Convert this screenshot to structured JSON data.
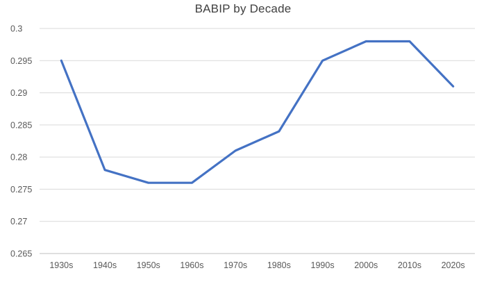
{
  "chart_data": {
    "type": "line",
    "title": "BABIP by Decade",
    "categories": [
      "1930s",
      "1940s",
      "1950s",
      "1960s",
      "1970s",
      "1980s",
      "1990s",
      "2000s",
      "2010s",
      "2020s"
    ],
    "values": [
      0.295,
      0.278,
      0.276,
      0.276,
      0.281,
      0.284,
      0.295,
      0.298,
      0.298,
      0.291
    ],
    "xlabel": "",
    "ylabel": "",
    "ylim": [
      0.265,
      0.3
    ],
    "yticks": [
      0.3,
      0.295,
      0.29,
      0.285,
      0.28,
      0.275,
      0.27,
      0.265
    ],
    "ytick_labels": [
      "0.3",
      "0.295",
      "0.29",
      "0.285",
      "0.28",
      "0.275",
      "0.27",
      "0.265"
    ],
    "grid": "horizontal",
    "legend": "none",
    "colors": {
      "line": "#4472C4",
      "gridline": "#D9D9D9",
      "axis_line": "#BFBFBF",
      "tick_label": "#595959",
      "title": "#404040",
      "background": "#FFFFFF"
    }
  }
}
